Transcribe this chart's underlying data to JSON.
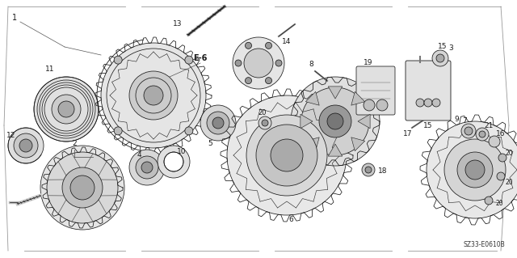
{
  "background_color": "#ffffff",
  "line_color": "#1a1a1a",
  "diagram_code": "SZ33-E0610B",
  "figsize": [
    6.4,
    3.19
  ],
  "dpi": 100,
  "label_fontsize": 7.0,
  "code_fontsize": 5.5,
  "border_color": "#999999",
  "border_lw": 0.6,
  "part_lw": 0.55
}
